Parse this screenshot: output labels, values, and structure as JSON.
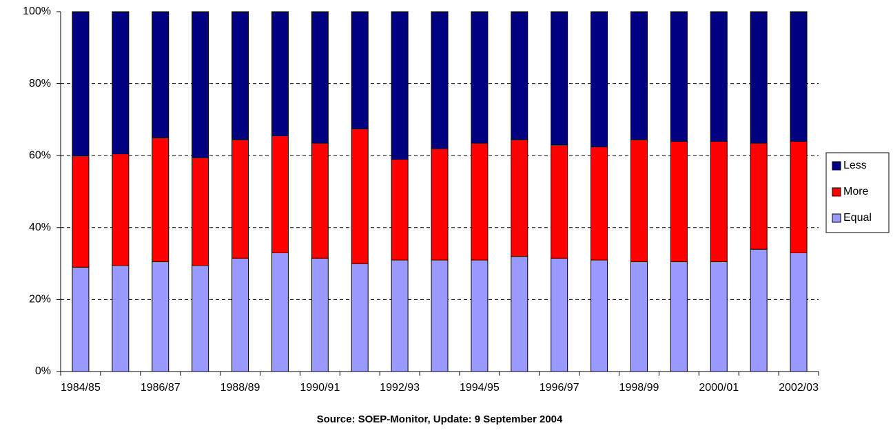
{
  "chart_data": {
    "type": "stacked_bar_percent",
    "source": "Source: SOEP-Monitor, Update: 9 September 2004",
    "categories": [
      "1984/85",
      null,
      "1986/87",
      null,
      "1988/89",
      null,
      "1990/91",
      null,
      "1992/93",
      null,
      "1994/95",
      null,
      "1996/97",
      null,
      "1998/99",
      null,
      "2000/01",
      null,
      "2002/03"
    ],
    "series": [
      {
        "name": "Equal",
        "color": "#9999ff",
        "values": [
          29,
          29.5,
          30.5,
          29.5,
          31.5,
          33,
          31.5,
          30,
          31,
          31,
          31,
          32,
          31.5,
          31,
          30.5,
          30.5,
          30.5,
          34,
          33
        ]
      },
      {
        "name": "More",
        "color": "#ff0000",
        "values": [
          31,
          31,
          34.5,
          30,
          33,
          32.5,
          32,
          37.5,
          28,
          31,
          32.5,
          32.5,
          31.5,
          31.5,
          34,
          33.5,
          33.5,
          29.5,
          31
        ]
      },
      {
        "name": "Less",
        "color": "#000080",
        "values": [
          40,
          39.5,
          35,
          40.5,
          35.5,
          34.5,
          36.5,
          32.5,
          41,
          38,
          36.5,
          35.5,
          37,
          37.5,
          35.5,
          36,
          36,
          36.5,
          36
        ]
      }
    ],
    "ylim": [
      0,
      100
    ],
    "yticks": [
      {
        "value": 0,
        "label": "0%"
      },
      {
        "value": 20,
        "label": "20%"
      },
      {
        "value": 40,
        "label": "40%"
      },
      {
        "value": 60,
        "label": "60%"
      },
      {
        "value": 80,
        "label": "80%"
      },
      {
        "value": 100,
        "label": "100%"
      }
    ],
    "grid": true,
    "legend": "right"
  }
}
